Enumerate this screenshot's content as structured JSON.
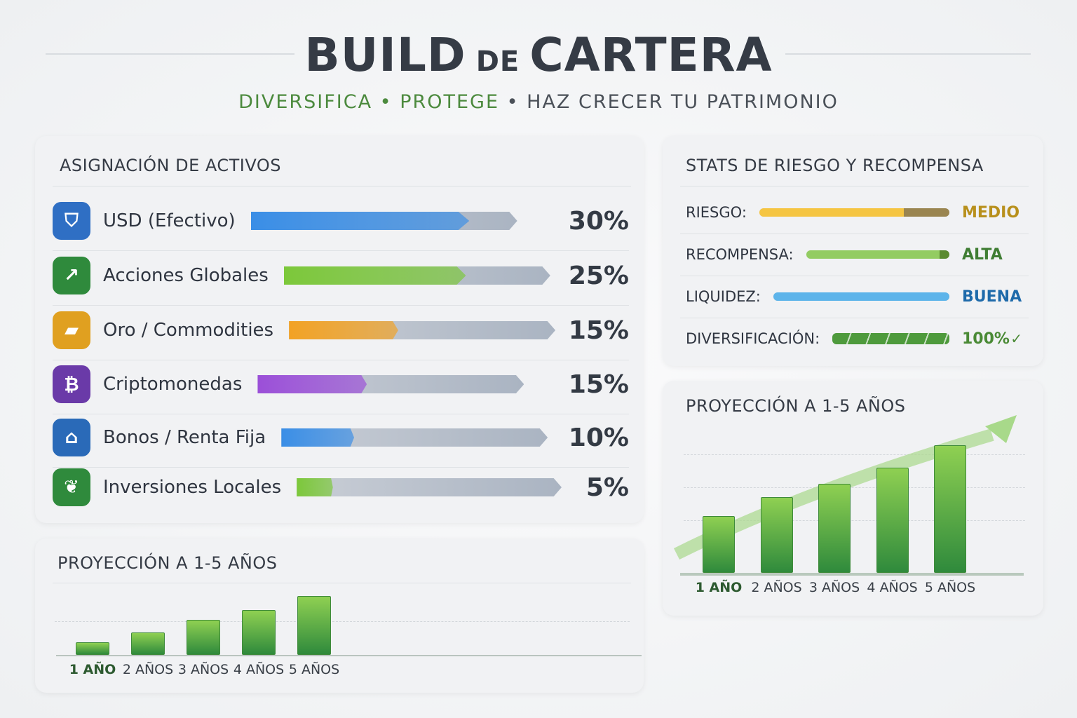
{
  "header": {
    "title_a": "BUILD",
    "title_de": "DE",
    "title_b": "CARTERA",
    "sub1": "DIVERSIFICA",
    "sub2": "PROTEGE",
    "sub3": "HAZ CRECER TU PATRIMONIO",
    "dot": "•"
  },
  "allocation": {
    "title": "ASIGNACIÓN DE ACTIVOS",
    "items": [
      {
        "label": "USD (Efectivo)",
        "pct": "30%",
        "value": 30,
        "icon": "shield-icon",
        "color": "#3a8ee6"
      },
      {
        "label": "Acciones Globales",
        "pct": "25%",
        "value": 25,
        "icon": "growth-arrow-icon",
        "color": "#7cc83a"
      },
      {
        "label": "Oro / Commodities",
        "pct": "15%",
        "value": 15,
        "icon": "gold-bars-icon",
        "color": "#f2a224"
      },
      {
        "label": "Criptomonedas",
        "pct": "15%",
        "value": 15,
        "icon": "bitcoin-icon",
        "color": "#9b4fd8"
      },
      {
        "label": "Bonos / Renta Fija",
        "pct": "10%",
        "value": 10,
        "icon": "bank-icon",
        "color": "#3a8ee6"
      },
      {
        "label": "Inversiones Locales",
        "pct": "5%",
        "value": 5,
        "icon": "leaf-icon",
        "color": "#7cc83a"
      }
    ]
  },
  "stats": {
    "title": "STATS DE RIESGO Y RECOMPENSA",
    "items": [
      {
        "label": "RIESGO:",
        "value": "MEDIO",
        "level": 0.76,
        "color": "#f5c542",
        "valcolor": "#b8901c"
      },
      {
        "label": "RECOMPENSA:",
        "value": "ALTA",
        "level": 0.93,
        "color": "#93cc62",
        "valcolor": "#3f7d33"
      },
      {
        "label": "LIQUIDEZ:",
        "value": "BUENA",
        "level": 1.0,
        "color": "#5db4ea",
        "valcolor": "#1e6aaa"
      },
      {
        "label": "DIVERSIFICACIÓN:",
        "value": "100%",
        "level": 1.0,
        "color": "#4e9a3c",
        "valcolor": "#4a8a35"
      }
    ]
  },
  "chart_data": [
    {
      "type": "bar",
      "title": "PROYECCIÓN A 1-5 AÑOS",
      "categories": [
        "1 AÑO",
        "2 AÑOS",
        "3 AÑOS",
        "4 AÑOS",
        "5 AÑOS"
      ],
      "values": [
        18,
        32,
        50,
        64,
        84
      ],
      "xlabel": "",
      "ylabel": ""
    },
    {
      "type": "bar",
      "title": "PROYECCIÓN A 1-5 AÑOS",
      "categories": [
        "1 AÑO",
        "2 AÑOS",
        "3 AÑOS",
        "4 AÑOS",
        "5 AÑOS"
      ],
      "values": [
        81,
        108,
        127,
        150,
        182
      ],
      "xlabel": "",
      "ylabel": ""
    }
  ]
}
